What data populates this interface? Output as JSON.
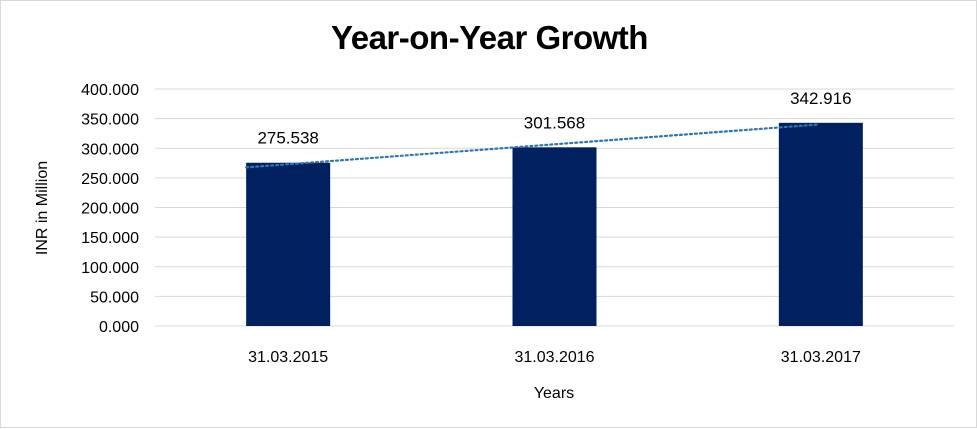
{
  "chart_data": {
    "type": "bar",
    "title": "Year-on-Year Growth",
    "xlabel": "Years",
    "ylabel": "INR in Million",
    "categories": [
      "31.03.2015",
      "31.03.2016",
      "31.03.2017"
    ],
    "values": [
      275.538,
      301.568,
      342.916
    ],
    "data_labels": [
      "275.538",
      "301.568",
      "342.916"
    ],
    "ylim": [
      0,
      400
    ],
    "yticks": [
      0,
      50,
      100,
      150,
      200,
      250,
      300,
      350,
      400
    ],
    "ytick_labels": [
      "0.000",
      "50.000",
      "100.000",
      "150.000",
      "200.000",
      "250.000",
      "300.000",
      "350.000",
      "400.000"
    ],
    "grid": true,
    "legend": "none",
    "trendline": {
      "type": "linear",
      "style": "dotted"
    },
    "colors": {
      "bar": "#002060",
      "trendline": "#2e75b6",
      "grid": "#d9d9d9"
    }
  }
}
